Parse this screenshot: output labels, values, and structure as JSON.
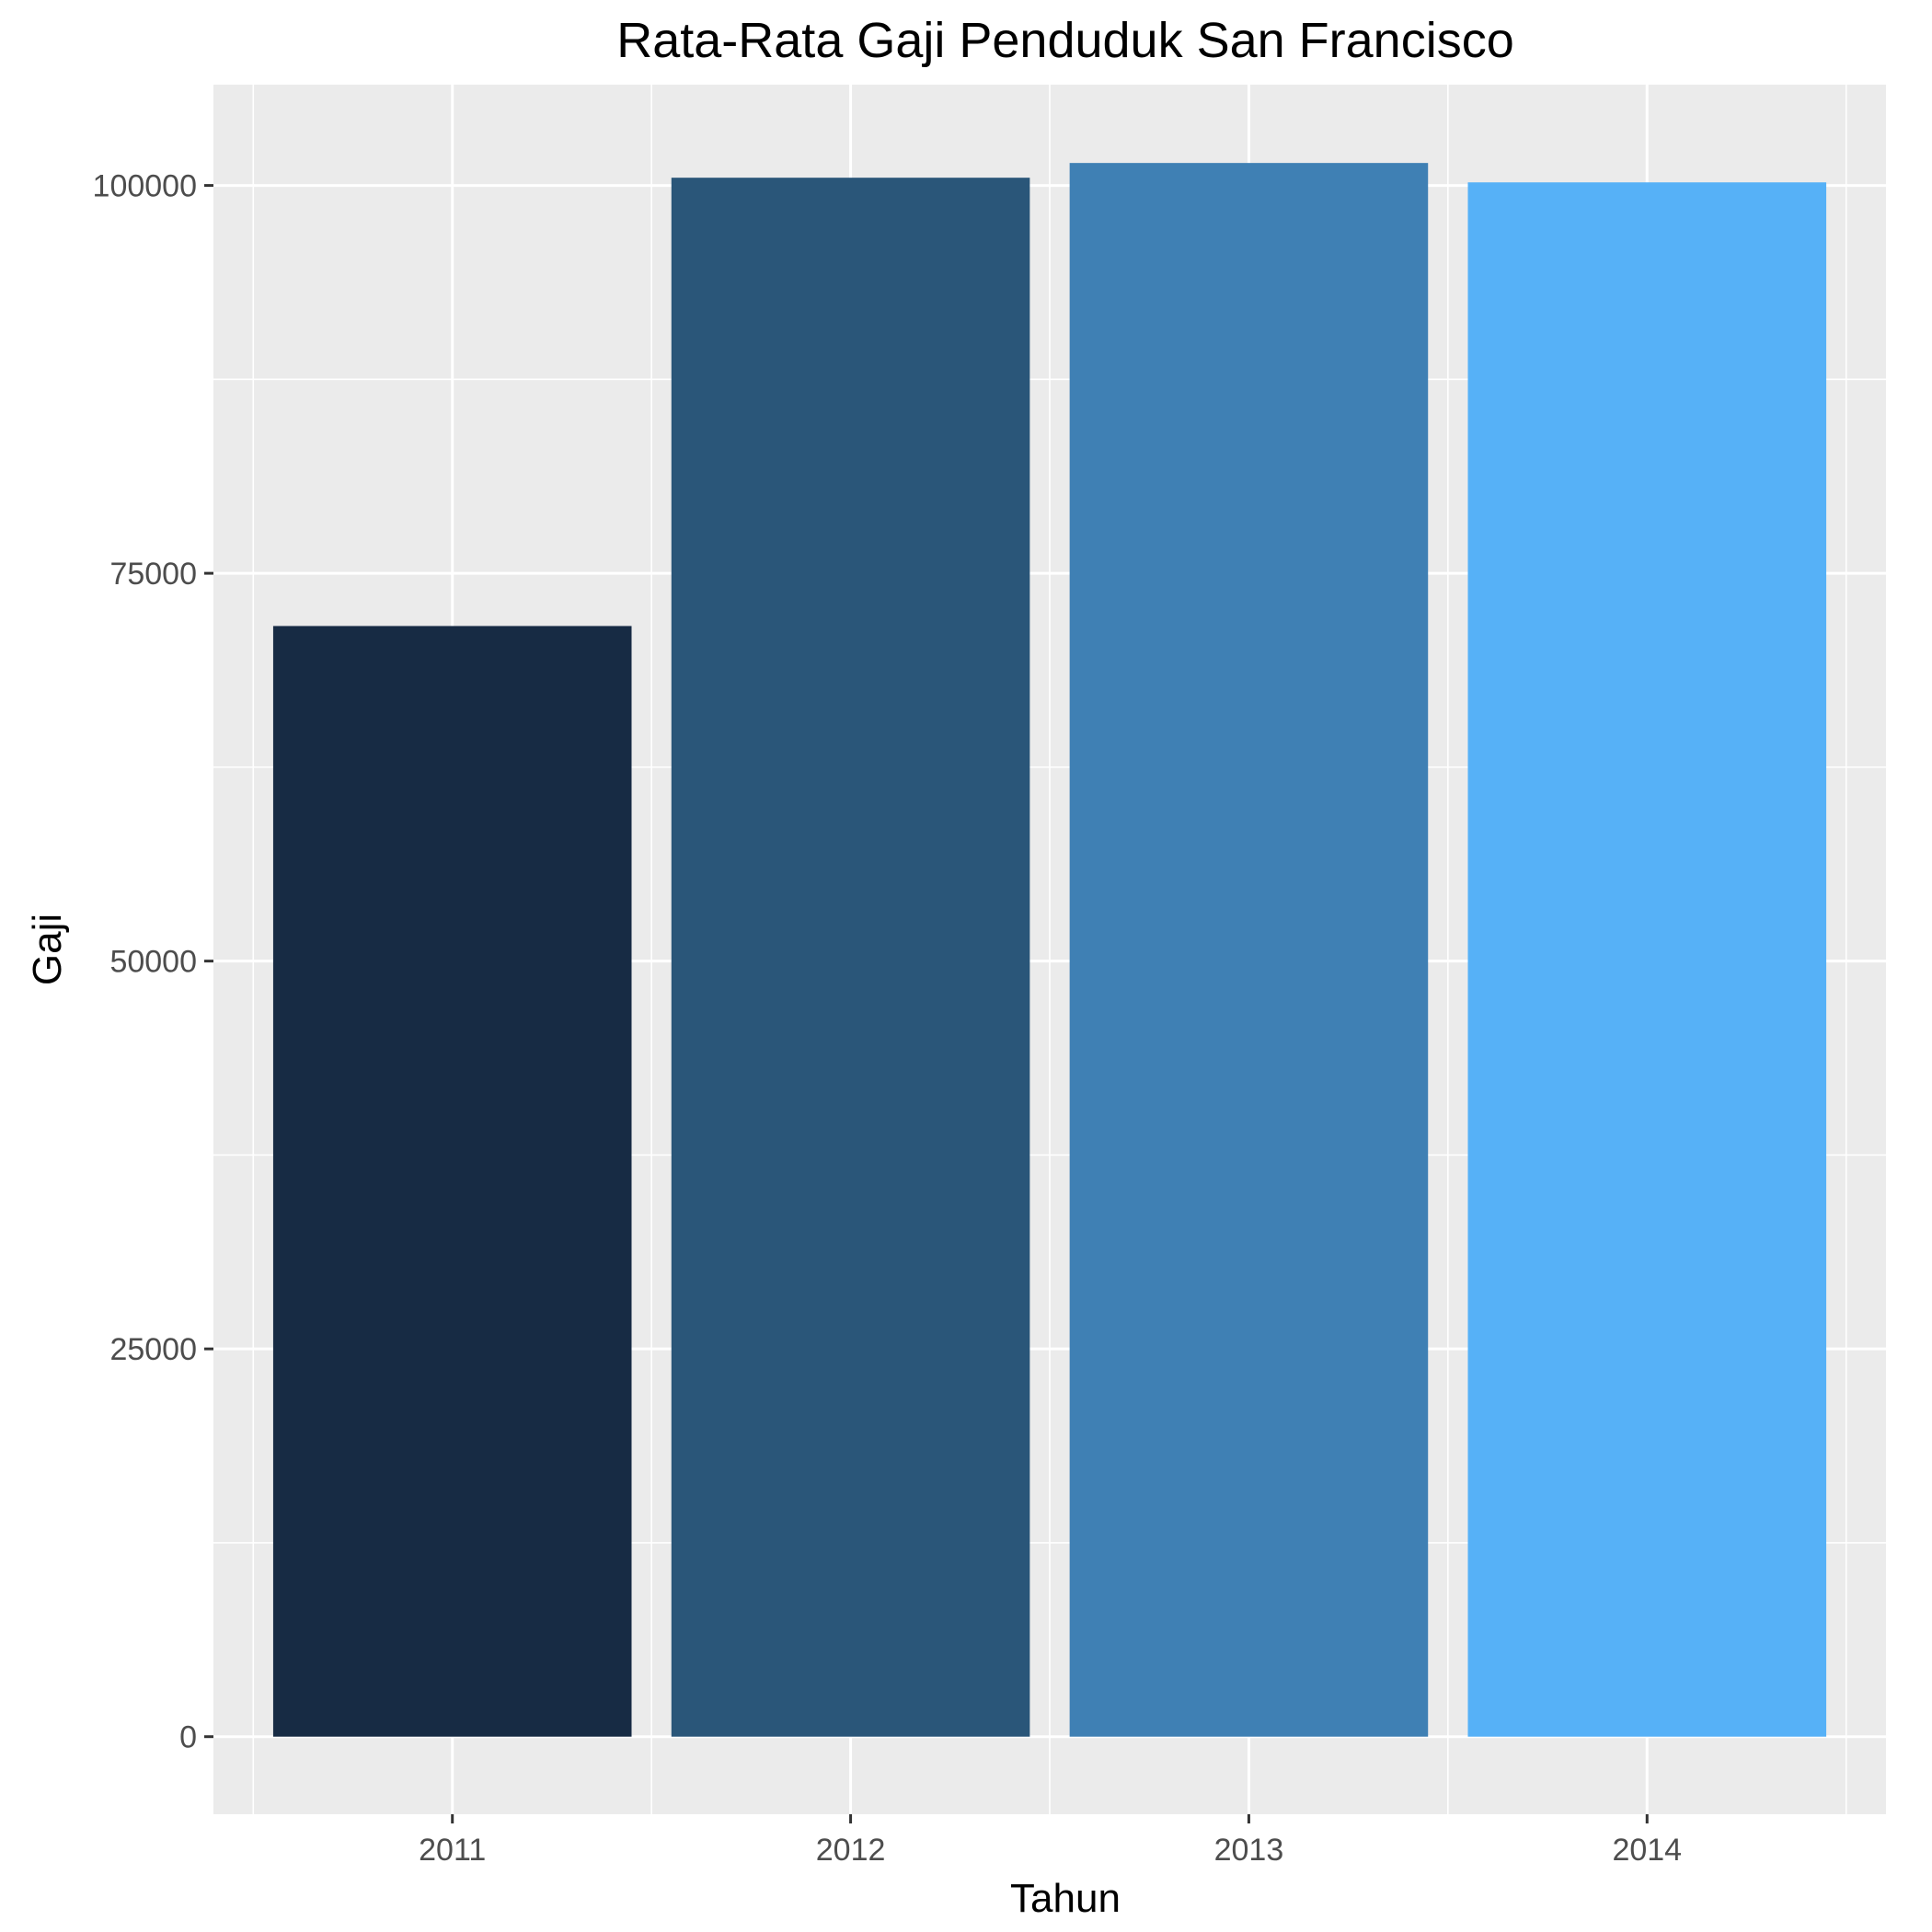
{
  "chart_data": {
    "type": "bar",
    "title": "Rata-Rata Gaji Penduduk San Francisco",
    "xlabel": "Tahun",
    "ylabel": "Gaji",
    "categories": [
      "2011",
      "2012",
      "2013",
      "2014"
    ],
    "values": [
      71600,
      100500,
      101450,
      100200
    ],
    "colors": [
      "#172b44",
      "#2a5679",
      "#3f80b4",
      "#56b1f7"
    ],
    "ylim": [
      -5000,
      106500
    ],
    "yticks": [
      0,
      25000,
      50000,
      75000,
      100000
    ],
    "ytick_labels": [
      "0",
      "25000",
      "50000",
      "75000",
      "100000"
    ],
    "grid": true,
    "panel_background": "#ebebeb",
    "legend": "none"
  }
}
